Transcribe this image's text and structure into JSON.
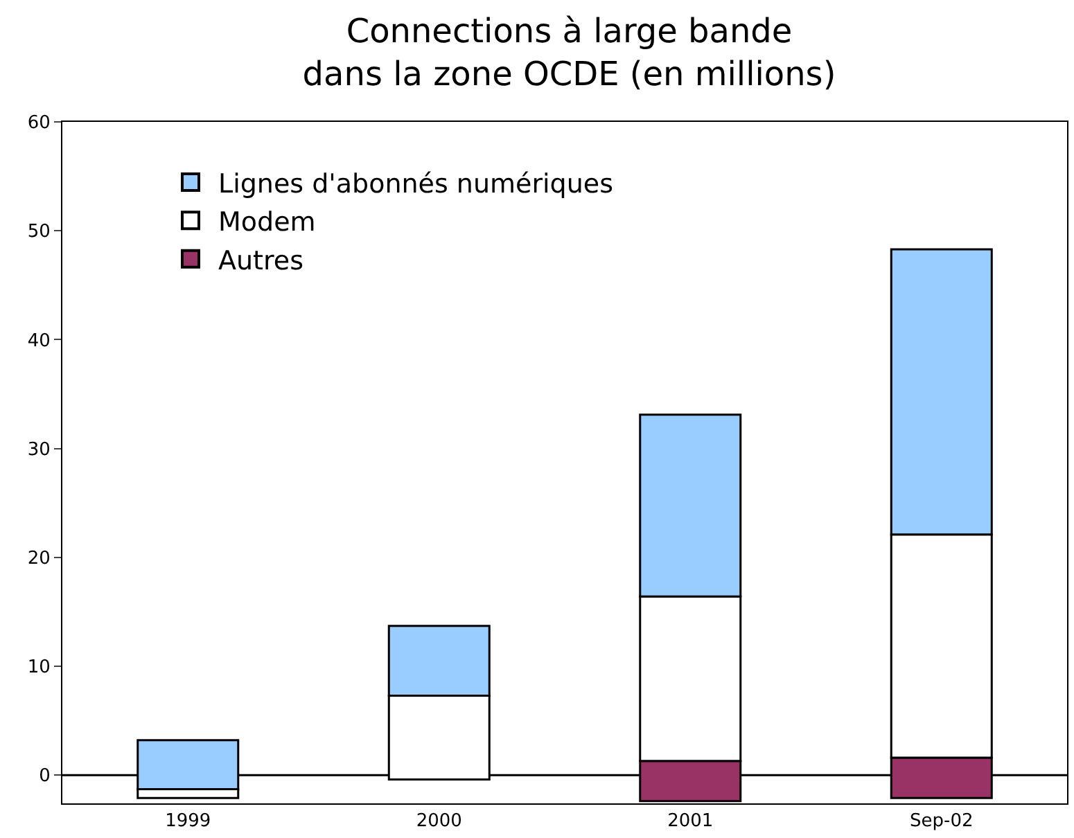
{
  "chart_data": {
    "type": "bar",
    "title": "Connections à large bande\ndans la zone OCDE (en millions)",
    "categories": [
      "1999",
      "2000",
      "2001",
      "Sep-02"
    ],
    "series": [
      {
        "name": "Autres",
        "color": "#993366",
        "base": [
          null,
          null,
          -2.4,
          -2.1
        ],
        "values": [
          null,
          null,
          3.7,
          3.7
        ]
      },
      {
        "name": "Modem",
        "color": "#ffffff",
        "base": [
          -2.1,
          -0.4,
          1.3,
          1.6
        ],
        "values": [
          0.8,
          7.7,
          15.1,
          20.5
        ]
      },
      {
        "name": "Lignes d'abonnés numériques",
        "color": "#99ccff",
        "base": [
          -1.3,
          7.3,
          16.4,
          22.1
        ],
        "values": [
          4.5,
          6.4,
          16.7,
          26.2
        ]
      }
    ],
    "ylim": [
      -2.6,
      60
    ],
    "yticks": [
      0,
      10,
      20,
      30,
      40,
      50,
      60
    ],
    "ref_lines": [
      {
        "axis": "y",
        "value": 0
      }
    ],
    "legend": "top left"
  }
}
